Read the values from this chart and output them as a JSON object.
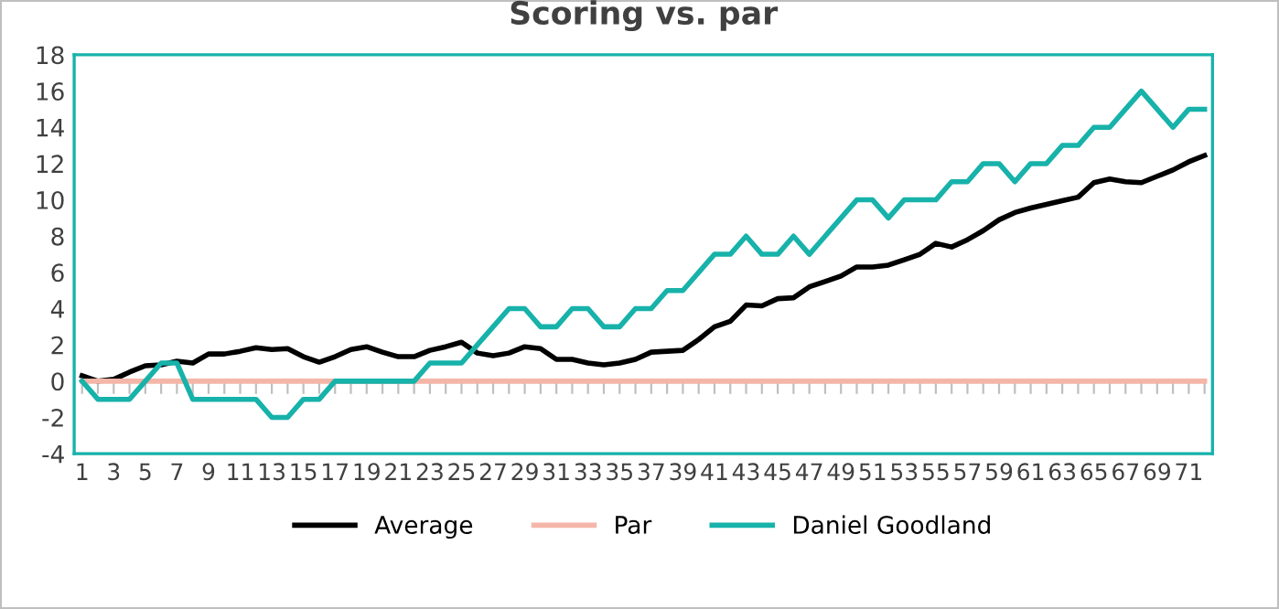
{
  "chart_data": {
    "type": "line",
    "title": "Scoring vs. par",
    "categories": [
      "1",
      null,
      "3",
      null,
      "5",
      null,
      "7",
      null,
      "9",
      null,
      "11",
      null,
      "13",
      null,
      "15",
      null,
      "17",
      null,
      "19",
      null,
      "21",
      null,
      "23",
      null,
      "25",
      null,
      "27",
      null,
      "29",
      null,
      "31",
      null,
      "33",
      null,
      "35",
      null,
      "37",
      null,
      "39",
      null,
      "41",
      null,
      "43",
      null,
      "45",
      null,
      "47",
      null,
      "49",
      null,
      "51",
      null,
      "53",
      null,
      "55",
      null,
      "57",
      null,
      "59",
      null,
      "61",
      null,
      "63",
      null,
      "65",
      null,
      "67",
      null,
      "69",
      null,
      "71",
      null
    ],
    "series": [
      {
        "name": "Average",
        "color": "#000000",
        "values": [
          0.3,
          0,
          0.1,
          0.5,
          0.85,
          0.9,
          1.1,
          1.0,
          1.5,
          1.5,
          1.65,
          1.85,
          1.75,
          1.8,
          1.35,
          1.05,
          1.35,
          1.75,
          1.9,
          1.6,
          1.35,
          1.35,
          1.7,
          1.9,
          2.15,
          1.55,
          1.4,
          1.55,
          1.9,
          1.8,
          1.2,
          1.2,
          1.0,
          0.9,
          1.0,
          1.2,
          1.6,
          1.65,
          1.7,
          2.3,
          3.0,
          3.3,
          4.2,
          4.15,
          4.55,
          4.6,
          5.2,
          5.5,
          5.8,
          6.3,
          6.3,
          6.4,
          6.7,
          7.0,
          7.6,
          7.4,
          7.8,
          8.3,
          8.9,
          9.3,
          9.55,
          9.75,
          9.95,
          10.15,
          10.95,
          11.15,
          11.0,
          10.95,
          11.3,
          11.65,
          12.1,
          12.45
        ]
      },
      {
        "name": "Par",
        "color": "#f4b6a8",
        "values": [
          0,
          0,
          0,
          0,
          0,
          0,
          0,
          0,
          0,
          0,
          0,
          0,
          0,
          0,
          0,
          0,
          0,
          0,
          0,
          0,
          0,
          0,
          0,
          0,
          0,
          0,
          0,
          0,
          0,
          0,
          0,
          0,
          0,
          0,
          0,
          0,
          0,
          0,
          0,
          0,
          0,
          0,
          0,
          0,
          0,
          0,
          0,
          0,
          0,
          0,
          0,
          0,
          0,
          0,
          0,
          0,
          0,
          0,
          0,
          0,
          0,
          0,
          0,
          0,
          0,
          0,
          0,
          0,
          0,
          0,
          0,
          0
        ]
      },
      {
        "name": "Daniel Goodland",
        "color": "#17b2aa",
        "values": [
          0,
          -1,
          -1,
          -1,
          0,
          1,
          1,
          -1,
          -1,
          -1,
          -1,
          -1,
          -2,
          -2,
          -1,
          -1,
          0,
          0,
          0,
          0,
          0,
          0,
          1,
          1,
          1,
          2,
          3,
          4,
          4,
          3,
          3,
          4,
          4,
          3,
          3,
          4,
          4,
          5,
          5,
          6,
          7,
          7,
          8,
          7,
          7,
          8,
          7,
          8,
          9,
          10,
          10,
          9,
          10,
          10,
          10,
          11,
          11,
          12,
          12,
          11,
          12,
          12,
          13,
          13,
          14,
          14,
          15,
          16,
          15,
          14,
          15,
          15
        ]
      }
    ],
    "ylim": [
      -4,
      18
    ],
    "yticks": [
      -4,
      -2,
      0,
      2,
      4,
      6,
      8,
      10,
      12,
      14,
      16,
      18
    ],
    "grid": false,
    "legend": "bottom",
    "marker": "none",
    "line_style": "solid"
  }
}
